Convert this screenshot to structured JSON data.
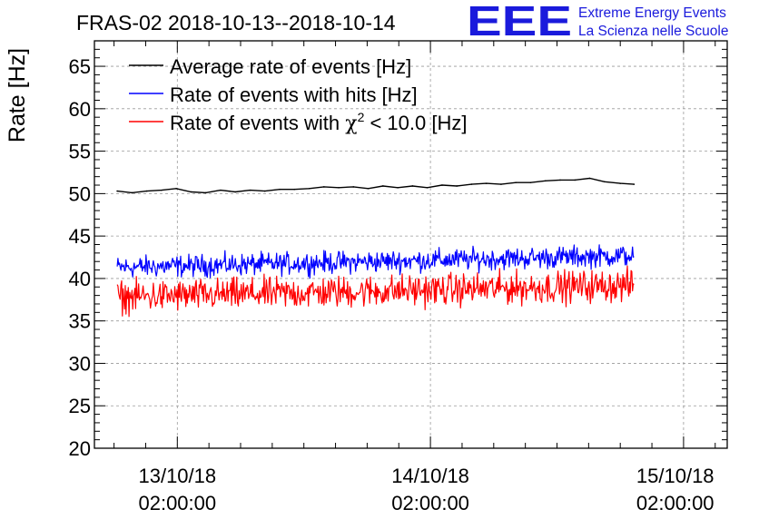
{
  "chart_data": {
    "type": "line",
    "title": "FRAS-02 2018-10-13--2018-10-14",
    "xlabel": "",
    "ylabel": "Rate [Hz]",
    "ylim": [
      20,
      68
    ],
    "yticks": [
      20,
      25,
      30,
      35,
      40,
      45,
      50,
      55,
      60,
      65
    ],
    "x_unit": "hours since 2018-10-13 00:00",
    "xlim": [
      -5.86,
      54.14
    ],
    "xticks": [
      {
        "hour": 2,
        "date": "13/10/18",
        "time": "02:00:00"
      },
      {
        "hour": 26,
        "date": "14/10/18",
        "time": "02:00:00"
      },
      {
        "hour": 50,
        "date": "15/10/18",
        "time": "02:00:00"
      }
    ],
    "grid": true,
    "legend_position": "top-left",
    "series": [
      {
        "name": "Average rate of events [Hz]",
        "color": "#000000",
        "x": [
          -3.7,
          -2.3,
          -0.9,
          0.5,
          1.9,
          3.3,
          4.7,
          6.1,
          7.5,
          8.9,
          10.3,
          11.7,
          13.1,
          14.5,
          15.9,
          17.3,
          18.7,
          20.1,
          21.5,
          22.9,
          24.3,
          25.7,
          27.1,
          28.5,
          29.9,
          31.3,
          32.7,
          34.1,
          35.5,
          36.9,
          38.3,
          39.7,
          41.1,
          42.5,
          44.0,
          45.3
        ],
        "y": [
          50.3,
          50.1,
          50.3,
          50.4,
          50.6,
          50.2,
          50.1,
          50.4,
          50.2,
          50.4,
          50.3,
          50.5,
          50.5,
          50.6,
          50.8,
          50.7,
          50.8,
          50.6,
          50.9,
          50.7,
          50.9,
          50.7,
          51.0,
          50.9,
          51.1,
          51.2,
          51.1,
          51.3,
          51.3,
          51.5,
          51.6,
          51.6,
          51.8,
          51.4,
          51.2,
          51.1
        ]
      },
      {
        "name": "Rate of events with hits [Hz]",
        "color": "#0000ff",
        "x_start": -3.7,
        "x_end": 45.3,
        "baseline_start": 41.3,
        "baseline_end": 42.7,
        "typical_min": 40.0,
        "typical_max": 44.2
      },
      {
        "name": "Rate of events with χ² < 10.0 [Hz]",
        "color": "#ff0000",
        "x_start": -3.7,
        "x_end": 45.3,
        "baseline_start": 37.8,
        "baseline_end": 39.2,
        "typical_min": 35.8,
        "typical_max": 41.3
      }
    ]
  },
  "legend": {
    "item1": "Average rate of events [Hz]",
    "item2": "Rate of events with hits [Hz]",
    "item3_pre": "Rate of events with ",
    "item3_chi": "χ",
    "item3_sup": "2",
    "item3_post": " < 10.0 [Hz]"
  },
  "logo": {
    "mark": "EEE",
    "line1": "Extreme Energy Events",
    "line2": "La Scienza nelle Scuole",
    "color": "#1a1adc"
  }
}
